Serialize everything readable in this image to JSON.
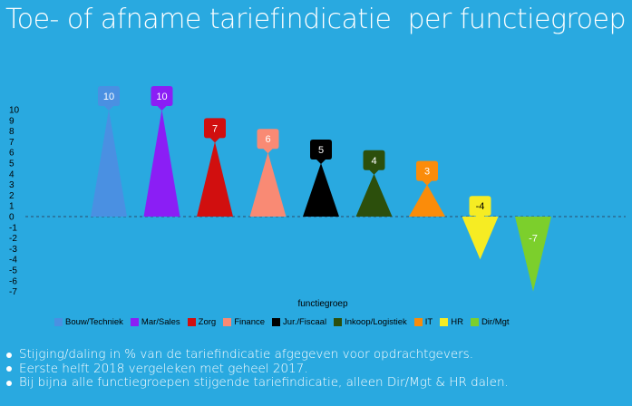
{
  "title": "Toe- of afname tariefindicatie  per functiegroep",
  "chart_data": {
    "type": "bar",
    "style": "triangle",
    "xlabel": "functiegroep",
    "ylim": [
      -7,
      10
    ],
    "yticks": [
      10,
      9,
      8,
      7,
      6,
      5,
      4,
      3,
      2,
      1,
      0,
      -1,
      -2,
      -3,
      -4,
      -5,
      -6,
      -7
    ],
    "zero_line": "dashed",
    "legend_position": "bottom",
    "categories": [
      "Bouw/Techniek",
      "Mar/Sales",
      "Zorg",
      "Finance",
      "Jur./Fiscaal",
      "Inkoop/Logistiek",
      "IT",
      "HR",
      "Dir/Mgt"
    ],
    "values": [
      10,
      10,
      7,
      6,
      5,
      4,
      3,
      -4,
      -7
    ],
    "colors": [
      "#4a90e2",
      "#8b1ef5",
      "#d10f0f",
      "#f98a74",
      "#000000",
      "#2c4f0c",
      "#fb8c0a",
      "#f6ec23",
      "#7ccf2c"
    ],
    "label_text_colors": [
      "#ffffff",
      "#ffffff",
      "#ffffff",
      "#ffffff",
      "#ffffff",
      "#ffffff",
      "#ffffff",
      "#000000",
      "#ffffff"
    ]
  },
  "bullets": [
    "Stijging/daling in % van de tariefindicatie afgegeven voor opdrachtgevers.",
    "Eerste helft 2018 vergeleken met geheel 2017.",
    "Bij bijna alle functiegroepen stijgende tariefindicatie, alleen Dir/Mgt & HR dalen."
  ]
}
